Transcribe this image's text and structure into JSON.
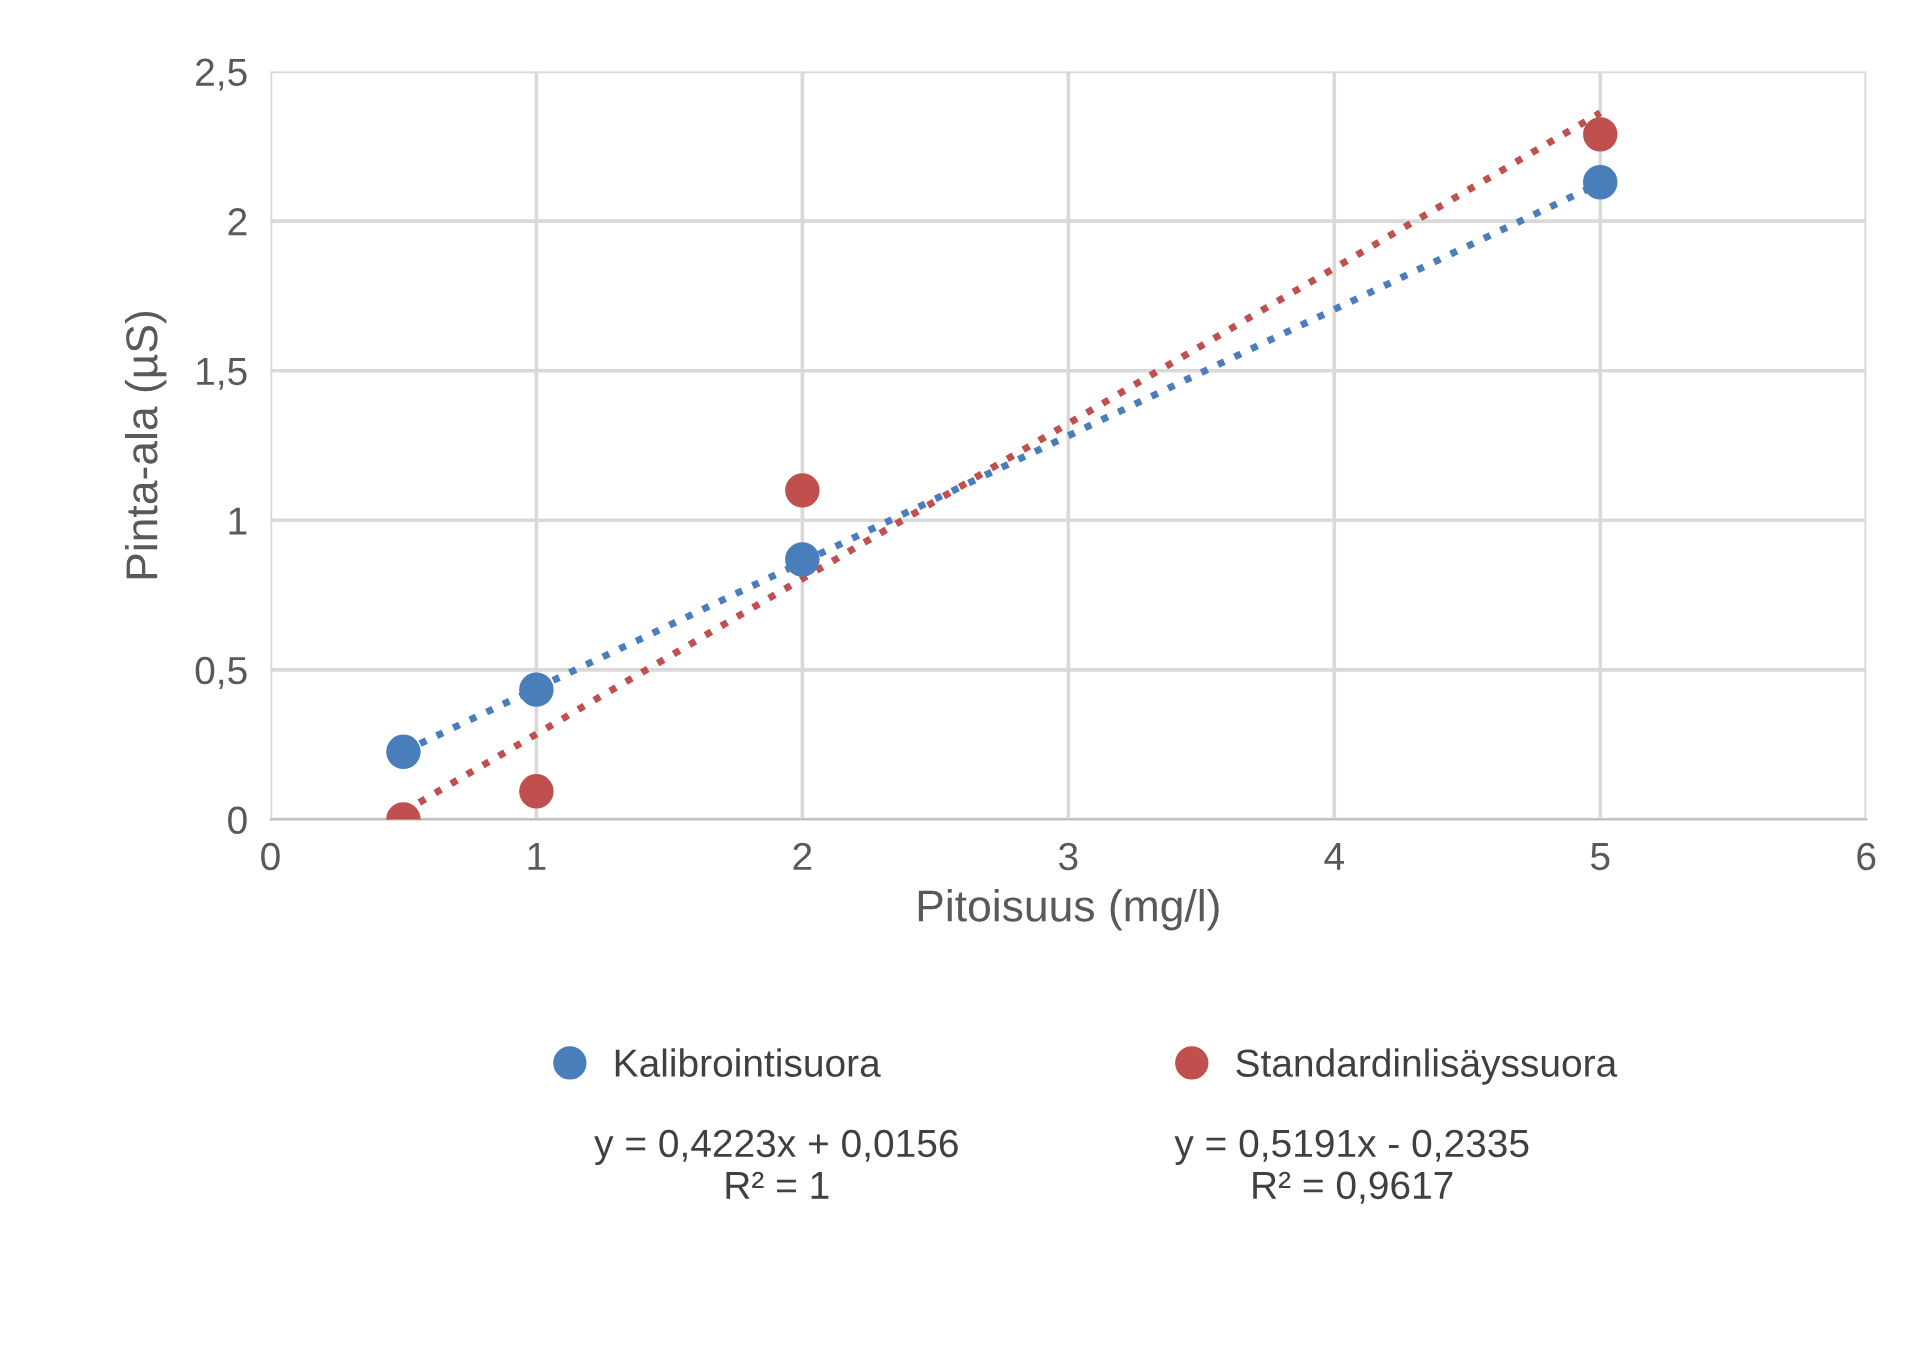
{
  "chart_data": {
    "type": "scatter",
    "xlabel": "Pitoisuus (mg/l)",
    "ylabel": "Pinta-ala (µS)",
    "xlim": [
      0,
      6
    ],
    "xticks": [
      0,
      1,
      2,
      3,
      4,
      5,
      6
    ],
    "ylim": [
      0,
      2.5
    ],
    "yticks": [
      0,
      {
        "value": 0.5,
        "label": "0,5"
      },
      1,
      {
        "value": 1.5,
        "label": "1,5"
      },
      2,
      {
        "value": 2.5,
        "label": "2,5"
      }
    ],
    "grid": true,
    "legend": "bottom",
    "marker": "circle",
    "series": [
      {
        "name": "Kalibrointisuora",
        "color": "#4a7ebb",
        "x": [
          0.5,
          1,
          2,
          5
        ],
        "values": [
          0.226,
          0.434,
          0.869,
          2.13
        ]
      },
      {
        "name": "Standardinlisäyssuora",
        "color": "#c0504d",
        "x": [
          0.5,
          1,
          2,
          5
        ],
        "values": [
          0,
          0.094,
          1.1,
          2.29
        ]
      },
      {
        "type": "line",
        "color": "#4a7ebb",
        "line_style": "dotted",
        "marker": "none",
        "x": [
          0.5,
          5
        ],
        "values": [
          0.227,
          2.127
        ]
      },
      {
        "type": "line",
        "color": "#c0504d",
        "line_style": "dotted",
        "marker": "none",
        "x": [
          0.5,
          5
        ],
        "values": [
          0.026,
          2.362
        ]
      }
    ],
    "annotations": [
      "y = 0,4223x + 0,0156\nR² = 1",
      "y = 0,5191x - 0,2335\nR² = 0,9617"
    ]
  }
}
